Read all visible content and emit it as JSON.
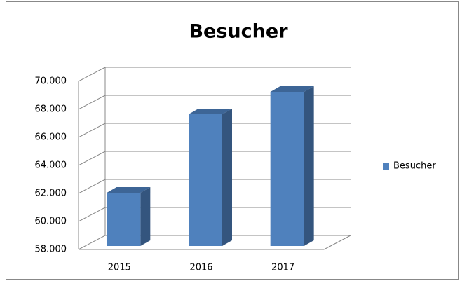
{
  "chart_data": {
    "type": "bar3d",
    "title": "Besucher",
    "categories": [
      "2015",
      "2016",
      "2017"
    ],
    "series": [
      {
        "name": "Besucher",
        "color": "#4f81bd",
        "values": [
          61800,
          67400,
          69000
        ]
      }
    ],
    "ylim": [
      58000,
      70000
    ],
    "yticks": [
      {
        "value": 58000,
        "label": "58.000"
      },
      {
        "value": 60000,
        "label": "60.000"
      },
      {
        "value": 62000,
        "label": "62.000"
      },
      {
        "value": 64000,
        "label": "64.000"
      },
      {
        "value": 66000,
        "label": "66.000"
      },
      {
        "value": 68000,
        "label": "68.000"
      },
      {
        "value": 70000,
        "label": "70.000"
      }
    ],
    "grid": true,
    "legend": "right"
  }
}
